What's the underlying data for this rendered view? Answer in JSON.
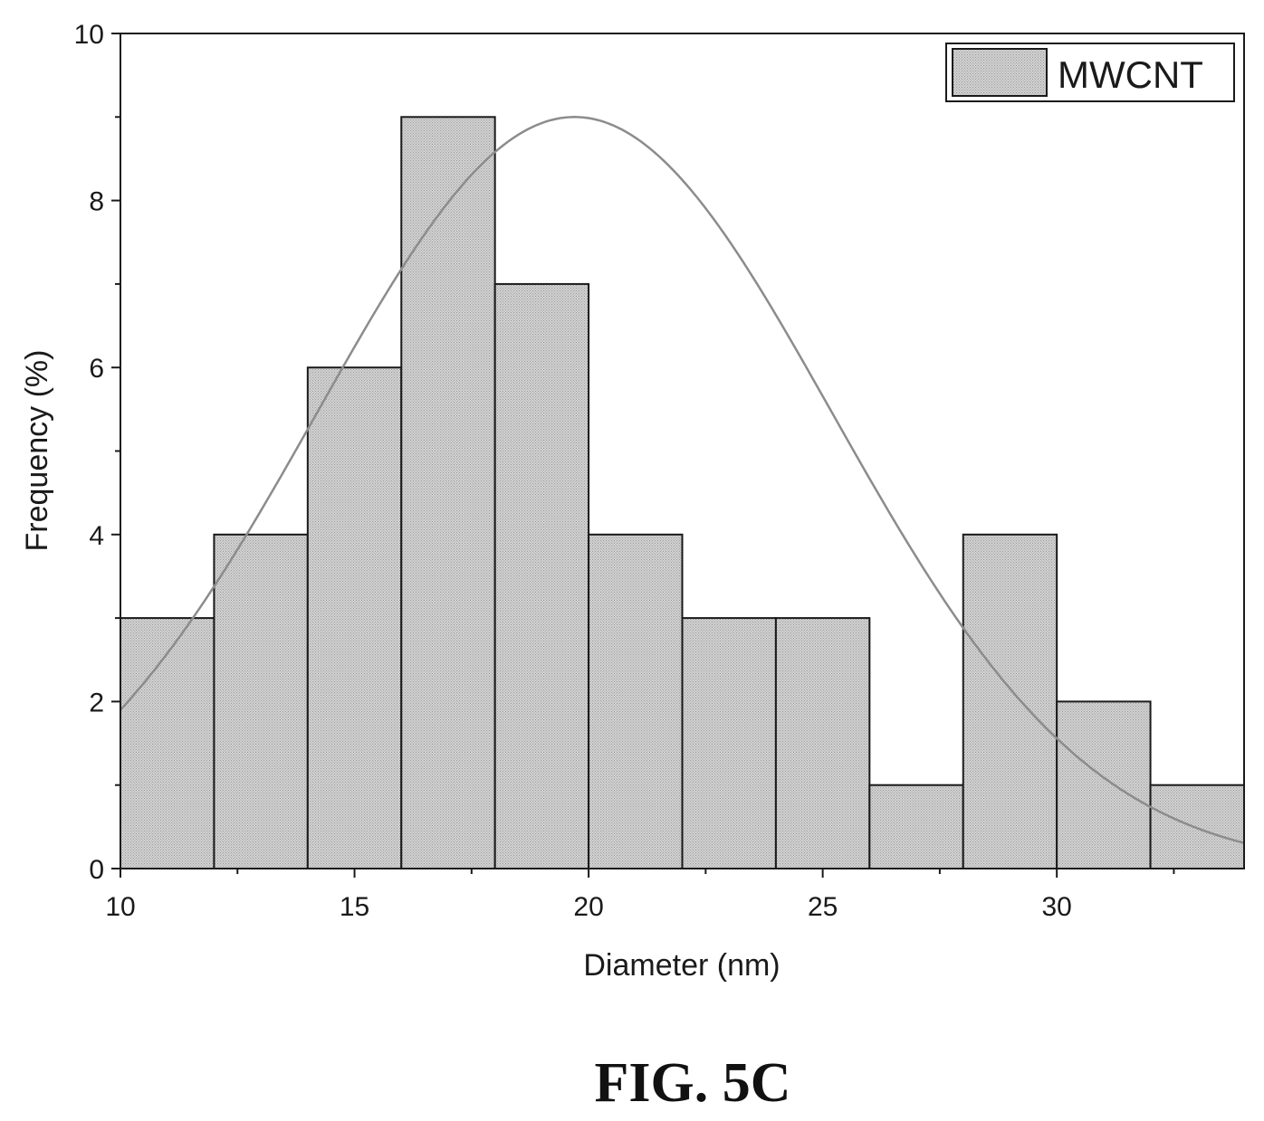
{
  "figure_caption": "FIG. 5C",
  "chart_data": {
    "type": "bar",
    "title": "",
    "xlabel": "Diameter (nm)",
    "ylabel": "Frequency (%)",
    "xlim": [
      10,
      34
    ],
    "ylim": [
      0,
      10
    ],
    "x_ticks": [
      "10",
      "15",
      "20",
      "25",
      "30"
    ],
    "y_ticks": [
      "0",
      "2",
      "4",
      "6",
      "8",
      "10"
    ],
    "bin_edges": [
      10,
      12,
      14,
      16,
      18,
      20,
      22,
      24,
      26,
      28,
      30,
      32,
      34
    ],
    "values": [
      3,
      4,
      6,
      9,
      7,
      4,
      3,
      3,
      1,
      4,
      2,
      1
    ],
    "series": [
      {
        "name": "MWCNT",
        "values": [
          3,
          4,
          6,
          9,
          7,
          4,
          3,
          3,
          1,
          4,
          2,
          1
        ]
      }
    ],
    "fit_curve": {
      "kind": "gaussian",
      "peak_x": 19.7,
      "peak_y": 9.0,
      "sigma": 5.5
    },
    "legend": {
      "position": "top-right",
      "entries": [
        "MWCNT"
      ]
    },
    "grid": false,
    "colors": {
      "bar_fill": "#cfcfcf",
      "bar_stroke": "#1a1a1a",
      "curve": "#8c8c8c",
      "axis": "#1a1a1a"
    }
  }
}
